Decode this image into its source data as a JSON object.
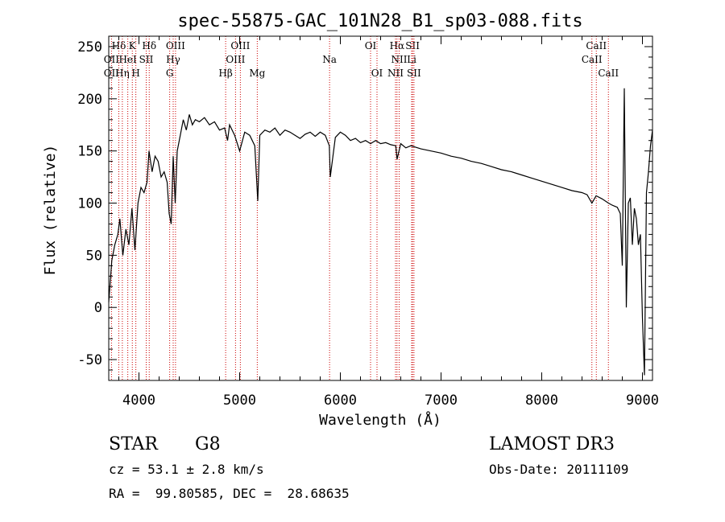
{
  "chart_data": {
    "type": "line",
    "title": "spec-55875-GAC_101N28_B1_sp03-088.fits",
    "xlabel": "Wavelength (Å)",
    "ylabel": "Flux (relative)",
    "xlim": [
      3700,
      9100
    ],
    "ylim": [
      -70,
      260
    ],
    "xticks": [
      4000,
      5000,
      6000,
      7000,
      8000,
      9000
    ],
    "yticks": [
      -50,
      0,
      50,
      100,
      150,
      200,
      250
    ],
    "line_color": "#000000",
    "marker_color": "#cc0000",
    "series": [
      {
        "name": "flux",
        "x": [
          3700,
          3730,
          3760,
          3790,
          3810,
          3840,
          3870,
          3900,
          3930,
          3960,
          3990,
          4020,
          4050,
          4080,
          4100,
          4130,
          4160,
          4190,
          4220,
          4250,
          4280,
          4300,
          4320,
          4340,
          4360,
          4380,
          4410,
          4440,
          4470,
          4500,
          4530,
          4560,
          4600,
          4650,
          4700,
          4750,
          4800,
          4850,
          4880,
          4900,
          4950,
          5000,
          5050,
          5100,
          5150,
          5180,
          5200,
          5250,
          5300,
          5350,
          5400,
          5450,
          5500,
          5550,
          5600,
          5650,
          5700,
          5750,
          5800,
          5850,
          5890,
          5900,
          5950,
          6000,
          6050,
          6100,
          6150,
          6200,
          6250,
          6300,
          6350,
          6400,
          6450,
          6500,
          6550,
          6563,
          6600,
          6650,
          6700,
          6800,
          6900,
          7000,
          7100,
          7200,
          7300,
          7400,
          7500,
          7600,
          7700,
          7800,
          7900,
          8000,
          8100,
          8200,
          8300,
          8400,
          8450,
          8498,
          8540,
          8600,
          8662,
          8700,
          8750,
          8780,
          8800,
          8820,
          8840,
          8860,
          8880,
          8900,
          8920,
          8940,
          8960,
          8980,
          9000,
          9020,
          9040,
          9060,
          9080,
          9100
        ],
        "values": [
          5,
          45,
          60,
          70,
          85,
          50,
          75,
          60,
          95,
          55,
          100,
          115,
          110,
          120,
          150,
          130,
          145,
          140,
          125,
          130,
          120,
          90,
          80,
          145,
          100,
          150,
          165,
          180,
          170,
          185,
          175,
          180,
          178,
          182,
          175,
          178,
          170,
          172,
          160,
          175,
          165,
          150,
          168,
          165,
          155,
          102,
          165,
          170,
          168,
          172,
          165,
          170,
          168,
          165,
          162,
          166,
          168,
          164,
          168,
          165,
          155,
          125,
          163,
          168,
          165,
          160,
          162,
          158,
          160,
          157,
          160,
          157,
          158,
          156,
          155,
          142,
          157,
          153,
          155,
          152,
          150,
          148,
          145,
          143,
          140,
          138,
          135,
          132,
          130,
          127,
          124,
          121,
          118,
          115,
          112,
          110,
          108,
          100,
          107,
          104,
          100,
          98,
          96,
          90,
          40,
          210,
          0,
          100,
          105,
          60,
          95,
          85,
          60,
          70,
          -10,
          -65,
          110,
          130,
          155,
          170
        ]
      }
    ],
    "spectral_lines": [
      {
        "name": "Hδ",
        "x": 3800,
        "row": 0
      },
      {
        "name": "K",
        "x": 3934,
        "row": 0
      },
      {
        "name": "Hδ",
        "x": 4102,
        "row": 0
      },
      {
        "name": "OIII",
        "x": 4363,
        "row": 0
      },
      {
        "name": "OIII",
        "x": 5007,
        "row": 0
      },
      {
        "name": "OI",
        "x": 6300,
        "row": 0
      },
      {
        "name": "Hα",
        "x": 6563,
        "row": 0
      },
      {
        "name": "SII",
        "x": 6717,
        "row": 0
      },
      {
        "name": "CaII",
        "x": 8542,
        "row": 0
      },
      {
        "name": "OII",
        "x": 3727,
        "row": 1
      },
      {
        "name": "HeI",
        "x": 3889,
        "row": 1
      },
      {
        "name": "SII",
        "x": 4072,
        "row": 1
      },
      {
        "name": "Hγ",
        "x": 4340,
        "row": 1
      },
      {
        "name": "OIII",
        "x": 4959,
        "row": 1
      },
      {
        "name": "Na",
        "x": 5893,
        "row": 1
      },
      {
        "name": "NII",
        "x": 6584,
        "row": 1
      },
      {
        "name": "Li",
        "x": 6708,
        "row": 1
      },
      {
        "name": "CaII",
        "x": 8498,
        "row": 1
      },
      {
        "name": "OII",
        "x": 3727,
        "row": 2
      },
      {
        "name": "Hη",
        "x": 3835,
        "row": 2
      },
      {
        "name": "H",
        "x": 3969,
        "row": 2
      },
      {
        "name": "G",
        "x": 4305,
        "row": 2
      },
      {
        "name": "Hβ",
        "x": 4861,
        "row": 2
      },
      {
        "name": "Mg",
        "x": 5175,
        "row": 2
      },
      {
        "name": "OI",
        "x": 6364,
        "row": 2
      },
      {
        "name": "NII",
        "x": 6548,
        "row": 2
      },
      {
        "name": "SII",
        "x": 6731,
        "row": 2
      },
      {
        "name": "CaII",
        "x": 8662,
        "row": 2
      }
    ]
  },
  "info": {
    "object_type": "STAR",
    "subclass": "G8",
    "survey": "LAMOST DR3",
    "redshift_line": "cz = 53.1 ± 2.8 km/s",
    "obs_date_line": "Obs-Date: 20111109",
    "coords_line": "RA =  99.80585, DEC =  28.68635"
  }
}
